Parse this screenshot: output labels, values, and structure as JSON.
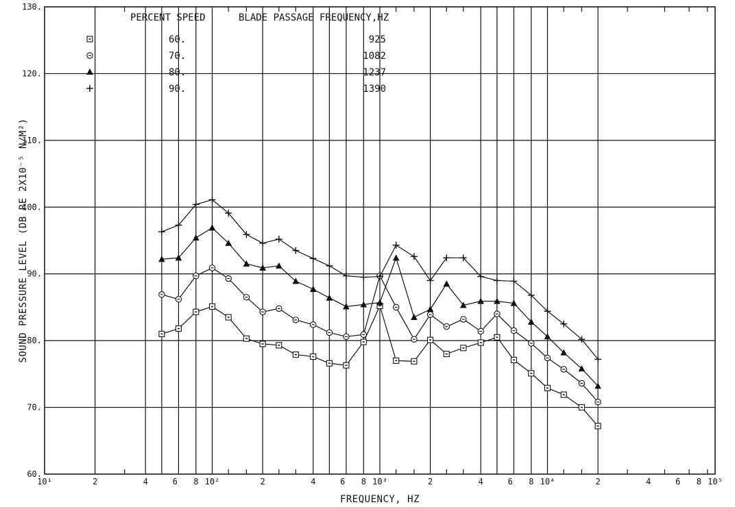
{
  "chart_data": {
    "type": "line",
    "xlabel": "FREQUENCY, HZ",
    "ylabel": "SOUND PRESSURE LEVEL (DB RE 2X10⁻⁵ N/M²)",
    "x_scale": "log",
    "xlim": [
      10,
      100000
    ],
    "ylim": [
      60,
      130
    ],
    "grid": true,
    "y_ticks": [
      {
        "value": 60,
        "label": "60."
      },
      {
        "value": 70,
        "label": "70."
      },
      {
        "value": 80,
        "label": "80."
      },
      {
        "value": 90,
        "label": "90."
      },
      {
        "value": 100,
        "label": "100."
      },
      {
        "value": 110,
        "label": "110."
      },
      {
        "value": 120,
        "label": "120."
      },
      {
        "value": 130,
        "label": "130."
      }
    ],
    "x_tick_labels": [
      {
        "value": 10,
        "label": "10¹"
      },
      {
        "value": 20,
        "label": "2"
      },
      {
        "value": 40,
        "label": "4"
      },
      {
        "value": 60,
        "label": "6"
      },
      {
        "value": 80,
        "label": "8"
      },
      {
        "value": 100,
        "label": "10²"
      },
      {
        "value": 200,
        "label": "2"
      },
      {
        "value": 400,
        "label": "4"
      },
      {
        "value": 600,
        "label": "6"
      },
      {
        "value": 800,
        "label": "8"
      },
      {
        "value": 1000,
        "label": "10³"
      },
      {
        "value": 2000,
        "label": "2"
      },
      {
        "value": 4000,
        "label": "4"
      },
      {
        "value": 6000,
        "label": "6"
      },
      {
        "value": 8000,
        "label": "8"
      },
      {
        "value": 10000,
        "label": "10⁴"
      },
      {
        "value": 20000,
        "label": "2"
      },
      {
        "value": 40000,
        "label": "4"
      },
      {
        "value": 60000,
        "label": "6"
      },
      {
        "value": 80000,
        "label": "8"
      },
      {
        "value": 100000,
        "label": "10⁵"
      }
    ],
    "major_grid_x": [
      10,
      20,
      40,
      50,
      63,
      80,
      100,
      200,
      400,
      500,
      630,
      800,
      1000,
      2000,
      4000,
      5000,
      6300,
      8000,
      10000,
      20000,
      100000
    ],
    "minor_ticks_x": [
      30,
      125,
      160,
      250,
      315,
      1250,
      1600,
      2500,
      3150,
      12500,
      16000,
      30000,
      50000,
      70000,
      90000
    ],
    "legend": {
      "header_speed": "PERCENT SPEED",
      "header_freq": "BLADE PASSAGE FREQUENCY,HZ",
      "entries": [
        {
          "marker": "square-dot",
          "speed": "60.",
          "freq": "925"
        },
        {
          "marker": "circle-dot",
          "speed": "70.",
          "freq": "1082"
        },
        {
          "marker": "triangle",
          "speed": "80.",
          "freq": "1237"
        },
        {
          "marker": "plus",
          "speed": "90.",
          "freq": "1390"
        }
      ]
    },
    "x": [
      50,
      63,
      80,
      100,
      125,
      160,
      200,
      250,
      315,
      400,
      500,
      630,
      800,
      1000,
      1250,
      1600,
      2000,
      2500,
      3150,
      4000,
      5000,
      6300,
      8000,
      10000,
      12500,
      16000,
      20000
    ],
    "series": [
      {
        "marker": "square-dot",
        "values": [
          81.0,
          81.8,
          84.3,
          85.1,
          83.5,
          80.3,
          79.5,
          79.3,
          77.9,
          77.6,
          76.6,
          76.3,
          79.8,
          85.2,
          77.0,
          76.9,
          80.1,
          78.0,
          78.9,
          79.7,
          80.5,
          77.1,
          75.1,
          72.9,
          71.9,
          70.0,
          67.2
        ]
      },
      {
        "marker": "circle-dot",
        "values": [
          86.9,
          86.2,
          89.7,
          90.9,
          89.3,
          86.5,
          84.3,
          84.8,
          83.1,
          82.4,
          81.2,
          80.6,
          80.9,
          89.7,
          85.0,
          80.2,
          83.9,
          82.1,
          83.2,
          81.4,
          84.0,
          81.5,
          79.6,
          77.4,
          75.7,
          73.6,
          70.8
        ]
      },
      {
        "marker": "triangle",
        "values": [
          92.2,
          92.4,
          95.4,
          96.9,
          94.6,
          91.5,
          90.9,
          91.2,
          88.9,
          87.7,
          86.4,
          85.1,
          85.4,
          85.7,
          92.4,
          83.5,
          84.7,
          88.5,
          85.3,
          85.9,
          85.9,
          85.6,
          82.8,
          80.6,
          78.2,
          75.8,
          73.2
        ]
      },
      {
        "marker": "plus",
        "values": [
          96.3,
          97.3,
          100.4,
          101.1,
          99.1,
          95.9,
          94.6,
          95.2,
          93.5,
          92.3,
          91.2,
          89.7,
          89.5,
          89.6,
          94.3,
          92.6,
          89.0,
          92.4,
          92.4,
          89.6,
          89.0,
          88.9,
          86.8,
          84.4,
          82.5,
          80.2,
          77.2
        ]
      }
    ]
  }
}
